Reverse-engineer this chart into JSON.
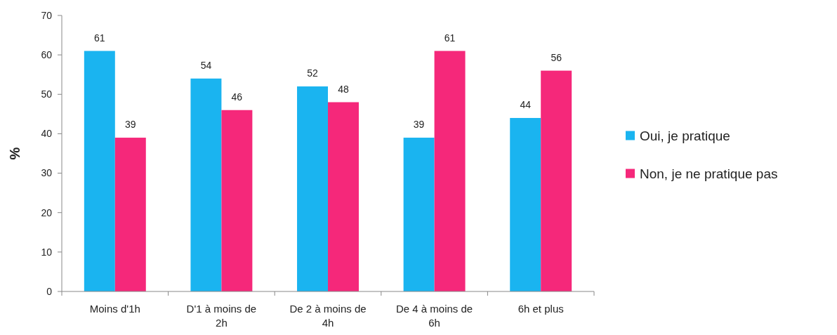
{
  "chart_data": {
    "type": "bar",
    "ylabel": "%",
    "categories": [
      "Moins d'1h",
      "D'1 à moins de 2h",
      "De 2 à moins de 4h",
      "De 4 à moins de 6h",
      "6h et plus"
    ],
    "series": [
      {
        "name": "Oui, je pratique",
        "color": "#1ab4f0",
        "values": [
          61,
          54,
          52,
          39,
          44
        ]
      },
      {
        "name": "Non, je ne pratique pas",
        "color": "#f5287a",
        "values": [
          39,
          46,
          48,
          61,
          56
        ]
      }
    ],
    "ylim": [
      0,
      70
    ],
    "yticks": [
      0,
      10,
      20,
      30,
      40,
      50,
      60,
      70
    ],
    "grid": false,
    "legend": "right",
    "data_labels": true
  }
}
